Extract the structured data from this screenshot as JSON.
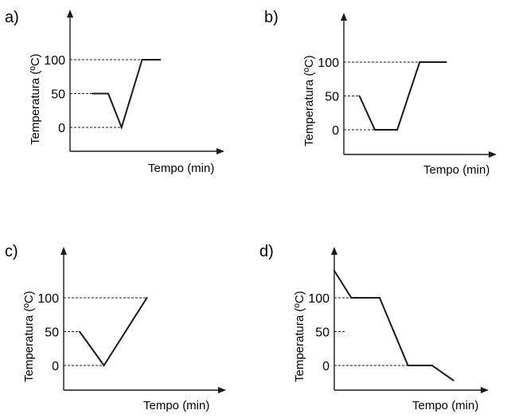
{
  "chart_data": [
    {
      "type": "line",
      "panel_label": "a)",
      "xlabel": "Tempo (min)",
      "ylabel": "Temperatura (ºC)",
      "yticks": [
        0,
        50,
        100
      ],
      "ylim": [
        -40,
        180
      ],
      "xlim": [
        0,
        10
      ],
      "x": [
        1.2,
        2.5,
        3.6,
        5.3,
        6.8
      ],
      "y": [
        50,
        50,
        0,
        100,
        100
      ]
    },
    {
      "type": "line",
      "panel_label": "b)",
      "xlabel": "Tempo (min)",
      "ylabel": "Temperatura (ºC)",
      "yticks": [
        0,
        50,
        100
      ],
      "ylim": [
        -40,
        180
      ],
      "xlim": [
        0,
        10
      ],
      "x": [
        1.0,
        2.1,
        3.7,
        5.3,
        7.2
      ],
      "y": [
        50,
        0,
        0,
        100,
        100
      ]
    },
    {
      "type": "line",
      "panel_label": "c)",
      "xlabel": "Tempo (min)",
      "ylabel": "Temperatura (ºC)",
      "yticks": [
        0,
        50,
        100
      ],
      "ylim": [
        -40,
        180
      ],
      "xlim": [
        0,
        10
      ],
      "x": [
        1.0,
        2.7,
        5.7
      ],
      "y": [
        50,
        0,
        100
      ]
    },
    {
      "type": "line",
      "panel_label": "d)",
      "xlabel": "Tempo (min)",
      "ylabel": "Temperatura (ºC)",
      "yticks": [
        0,
        50,
        100
      ],
      "ylim": [
        -40,
        180
      ],
      "xlim": [
        0,
        10
      ],
      "x": [
        0,
        1.2,
        3.2,
        5.2,
        6.9,
        8.4
      ],
      "y": [
        140,
        100,
        100,
        0,
        0,
        -22
      ]
    }
  ]
}
